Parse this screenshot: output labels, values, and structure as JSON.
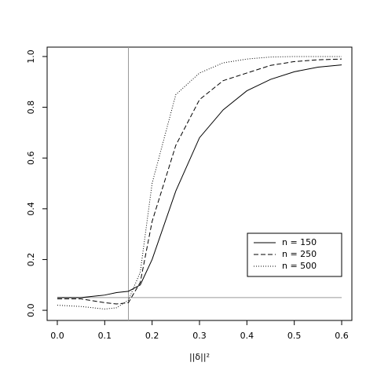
{
  "chart_data": {
    "type": "line",
    "x_label": "||δ||²",
    "x": [
      0,
      0.05,
      0.1,
      0.125,
      0.15,
      0.175,
      0.2,
      0.25,
      0.3,
      0.35,
      0.4,
      0.45,
      0.5,
      0.55,
      0.6
    ],
    "series": [
      {
        "name": "n = 150",
        "color": "#000000",
        "dash": "none",
        "values": [
          0.05,
          0.05,
          0.06,
          0.07,
          0.075,
          0.1,
          0.2,
          0.47,
          0.68,
          0.79,
          0.865,
          0.91,
          0.94,
          0.958,
          0.967
        ]
      },
      {
        "name": "n = 250",
        "color": "#000000",
        "dash": "6 3",
        "values": [
          0.045,
          0.045,
          0.03,
          0.025,
          0.03,
          0.11,
          0.35,
          0.65,
          0.83,
          0.905,
          0.935,
          0.965,
          0.98,
          0.987,
          0.99
        ]
      },
      {
        "name": "n = 500",
        "color": "#000000",
        "dash": "1 2",
        "values": [
          0.02,
          0.015,
          0.005,
          0.01,
          0.04,
          0.15,
          0.5,
          0.85,
          0.935,
          0.975,
          0.99,
          0.998,
          1.0,
          1.0,
          1.0
        ]
      }
    ],
    "vline": 0.15,
    "hline": 0.05,
    "ref_color": "#999999",
    "xlim": [
      -0.0215,
      0.6215
    ],
    "ylim": [
      -0.04,
      1.037
    ],
    "xticks": [
      {
        "value": 0,
        "label": "0.0"
      },
      {
        "value": 0.1,
        "label": "0.1"
      },
      {
        "value": 0.2,
        "label": "0.2"
      },
      {
        "value": 0.3,
        "label": "0.3"
      },
      {
        "value": 0.4,
        "label": "0.4"
      },
      {
        "value": 0.5,
        "label": "0.5"
      },
      {
        "value": 0.6,
        "label": "0.6"
      }
    ],
    "yticks": [
      {
        "value": 0,
        "label": "0.0"
      },
      {
        "value": 0.2,
        "label": "0.2"
      },
      {
        "value": 0.4,
        "label": "0.4"
      },
      {
        "value": 0.6,
        "label": "0.6"
      },
      {
        "value": 0.8,
        "label": "0.8"
      },
      {
        "value": 1,
        "label": "1.0"
      }
    ],
    "legend": "bottom-right"
  }
}
